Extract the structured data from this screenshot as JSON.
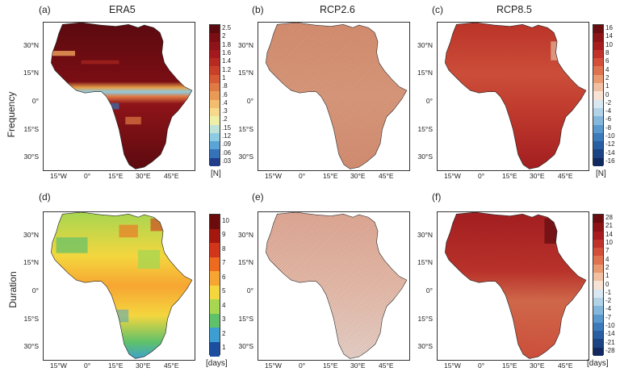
{
  "rows": [
    {
      "row_label": "Frequency"
    },
    {
      "row_label": "Duration"
    }
  ],
  "panels": [
    {
      "letter": "(a)",
      "title": "ERA5"
    },
    {
      "letter": "(b)",
      "title": "RCP2.6"
    },
    {
      "letter": "(c)",
      "title": "RCP8.5"
    },
    {
      "letter": "(d)",
      "title": ""
    },
    {
      "letter": "(e)",
      "title": ""
    },
    {
      "letter": "(f)",
      "title": ""
    }
  ],
  "x_ticks": [
    "15°W",
    "0°",
    "15°E",
    "30°E",
    "45°E"
  ],
  "y_ticks": [
    "30°N",
    "15°N",
    "0°",
    "15°S",
    "30°S"
  ],
  "colorbars": {
    "era5_freq": {
      "unit": "[N]",
      "ticks": [
        "2.5",
        "2",
        "1.8",
        "1.6",
        "1.4",
        "1.2",
        "1",
        ".8",
        ".6",
        ".4",
        ".3",
        ".2",
        ".15",
        ".12",
        ".09",
        ".06",
        ".03"
      ]
    },
    "rcp_freq": {
      "unit": "[N]",
      "ticks": [
        "16",
        "14",
        "10",
        "8",
        "6",
        "4",
        "2",
        "1",
        "0",
        "-2",
        "-4",
        "-6",
        "-8",
        "-10",
        "-12",
        "-14",
        "-16"
      ]
    },
    "era5_dur": {
      "unit": "[days]",
      "ticks": [
        "10",
        "9",
        "8",
        "7",
        "6",
        "5",
        "4",
        "3",
        "2",
        "1"
      ]
    },
    "rcp_dur": {
      "unit": "[days]",
      "ticks": [
        "28",
        "21",
        "14",
        "10",
        "7",
        "4",
        "2",
        "1",
        "0",
        "-1",
        "-2",
        "-4",
        "-7",
        "-10",
        "-14",
        "-21",
        "-28"
      ]
    }
  },
  "colors": {
    "era5_freq": [
      "#5b0a0f",
      "#7a0e14",
      "#8e1419",
      "#a3191d",
      "#b62a22",
      "#c9402a",
      "#d65a34",
      "#e07a44",
      "#e99a56",
      "#f2bd6f",
      "#f6d98c",
      "#eef0a8",
      "#bfe3d6",
      "#8ccbe2",
      "#5aa4d6",
      "#3572b8",
      "#1f3d8a"
    ],
    "rcp_freq": [
      "#6b0c10",
      "#8d1317",
      "#a81c1f",
      "#c0322a",
      "#d44f3a",
      "#e0734f",
      "#e99a71",
      "#f1c0a2",
      "#f7e2d3",
      "#d8e7f1",
      "#b2d2e8",
      "#85b7dc",
      "#5a99cd",
      "#3b7bbb",
      "#285ea2",
      "#1c4383",
      "#122a60"
    ],
    "era5_dur": [
      "#6b0b0b",
      "#a3170f",
      "#d1351a",
      "#ee6a1f",
      "#f7a532",
      "#f4d63e",
      "#a7d650",
      "#5fc16a",
      "#3d9fd1",
      "#1c4ea0"
    ],
    "rcp_dur": [
      "#6b0c10",
      "#8d1317",
      "#a81c1f",
      "#c0322a",
      "#d44f3a",
      "#e0734f",
      "#e99a71",
      "#f1c0a2",
      "#f7e2d3",
      "#d8e7f1",
      "#b2d2e8",
      "#85b7dc",
      "#5a99cd",
      "#3b7bbb",
      "#285ea2",
      "#1c4383",
      "#122a60"
    ]
  }
}
